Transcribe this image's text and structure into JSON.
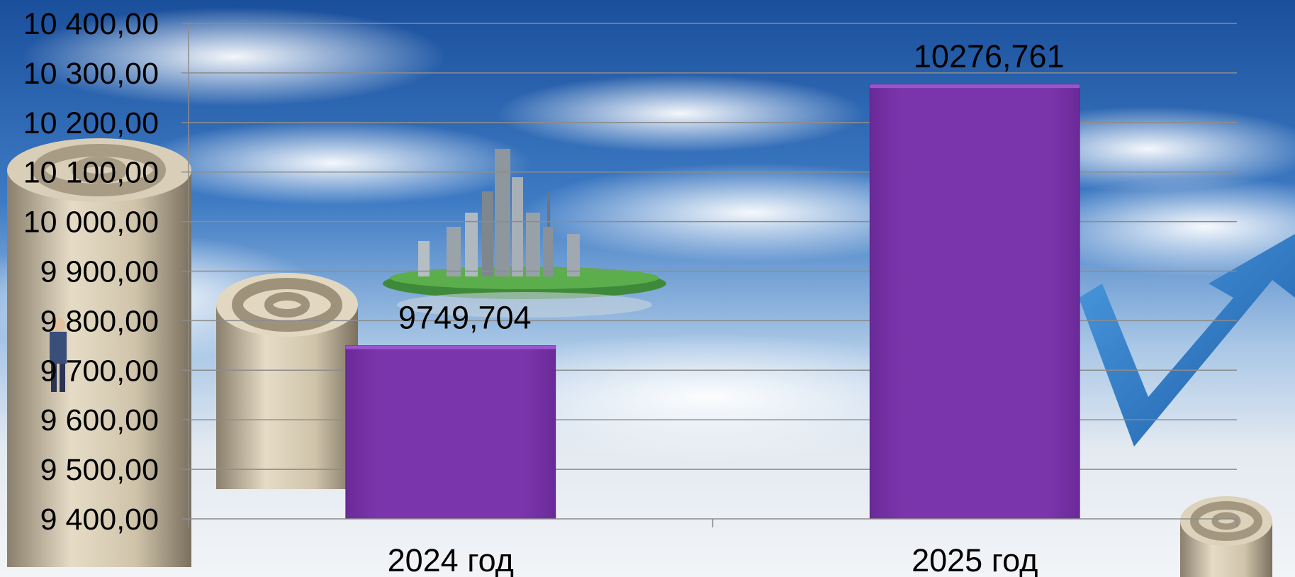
{
  "chart_data": {
    "type": "bar",
    "categories": [
      "2024 год",
      "2025 год"
    ],
    "values": [
      9749.704,
      10276.761
    ],
    "data_labels": [
      "9749,704",
      "10276,761"
    ],
    "ylim": [
      9400,
      10400
    ],
    "y_ticks": [
      9400,
      9500,
      9600,
      9700,
      9800,
      9900,
      10000,
      10100,
      10200,
      10300,
      10400
    ],
    "y_tick_labels": [
      "9 400,00",
      "9 500,00",
      "9 600,00",
      "9 700,00",
      "9 800,00",
      "9 900,00",
      "10 000,00",
      "10 100,00",
      "10 200,00",
      "10 300,00",
      "10 400,00"
    ],
    "title": "",
    "xlabel": "",
    "ylabel": "",
    "grid": true,
    "legend": "none",
    "colors": {
      "bar": "#7B35AC",
      "bar_top": "#9B55CC",
      "grid": "#8C8C8C",
      "sky_top": "#1E5AA8",
      "sky_mid": "#5E98D4",
      "ground": "#E9EDF2"
    },
    "background_decor": [
      "at-sign-cylinder",
      "floating-city-island",
      "checkmark-arrow",
      "business-person"
    ]
  }
}
